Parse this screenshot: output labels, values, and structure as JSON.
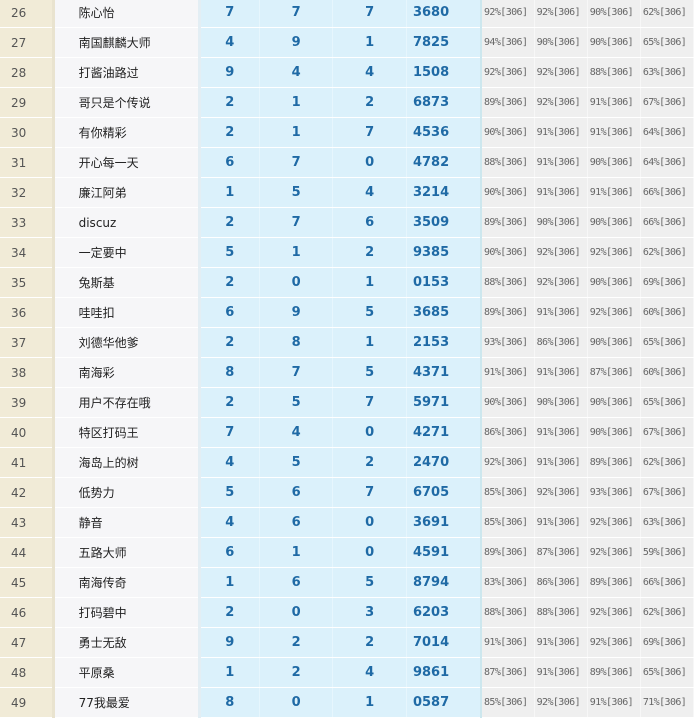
{
  "rows": [
    {
      "rank": "26",
      "name": "陈心怡",
      "d": [
        "7",
        "7",
        "7"
      ],
      "num": "3680",
      "pct": [
        "92%[306]",
        "92%[306]",
        "90%[306]",
        "62%[306]"
      ]
    },
    {
      "rank": "27",
      "name": "南国麒麟大师",
      "d": [
        "4",
        "9",
        "1"
      ],
      "num": "7825",
      "pct": [
        "94%[306]",
        "90%[306]",
        "90%[306]",
        "65%[306]"
      ]
    },
    {
      "rank": "28",
      "name": "打酱油路过",
      "d": [
        "9",
        "4",
        "4"
      ],
      "num": "1508",
      "pct": [
        "92%[306]",
        "92%[306]",
        "88%[306]",
        "63%[306]"
      ]
    },
    {
      "rank": "29",
      "name": "哥只是个传说",
      "d": [
        "2",
        "1",
        "2"
      ],
      "num": "6873",
      "pct": [
        "89%[306]",
        "92%[306]",
        "91%[306]",
        "67%[306]"
      ]
    },
    {
      "rank": "30",
      "name": "有你精彩",
      "d": [
        "2",
        "1",
        "7"
      ],
      "num": "4536",
      "pct": [
        "90%[306]",
        "91%[306]",
        "91%[306]",
        "64%[306]"
      ]
    },
    {
      "rank": "31",
      "name": "开心每一天",
      "d": [
        "6",
        "7",
        "0"
      ],
      "num": "4782",
      "pct": [
        "88%[306]",
        "91%[306]",
        "90%[306]",
        "64%[306]"
      ]
    },
    {
      "rank": "32",
      "name": "廉江阿弟",
      "d": [
        "1",
        "5",
        "4"
      ],
      "num": "3214",
      "pct": [
        "90%[306]",
        "91%[306]",
        "91%[306]",
        "66%[306]"
      ]
    },
    {
      "rank": "33",
      "name": "discuz",
      "d": [
        "2",
        "7",
        "6"
      ],
      "num": "3509",
      "pct": [
        "89%[306]",
        "90%[306]",
        "90%[306]",
        "66%[306]"
      ]
    },
    {
      "rank": "34",
      "name": "一定要中",
      "d": [
        "5",
        "1",
        "2"
      ],
      "num": "9385",
      "pct": [
        "90%[306]",
        "92%[306]",
        "92%[306]",
        "62%[306]"
      ]
    },
    {
      "rank": "35",
      "name": "兔斯基",
      "d": [
        "2",
        "0",
        "1"
      ],
      "num": "0153",
      "pct": [
        "88%[306]",
        "92%[306]",
        "90%[306]",
        "69%[306]"
      ]
    },
    {
      "rank": "36",
      "name": "哇哇扣",
      "d": [
        "6",
        "9",
        "5"
      ],
      "num": "3685",
      "pct": [
        "89%[306]",
        "91%[306]",
        "92%[306]",
        "60%[306]"
      ]
    },
    {
      "rank": "37",
      "name": "刘德华他爹",
      "d": [
        "2",
        "8",
        "1"
      ],
      "num": "2153",
      "pct": [
        "93%[306]",
        "86%[306]",
        "90%[306]",
        "65%[306]"
      ]
    },
    {
      "rank": "38",
      "name": "南海彩",
      "d": [
        "8",
        "7",
        "5"
      ],
      "num": "4371",
      "pct": [
        "91%[306]",
        "91%[306]",
        "87%[306]",
        "60%[306]"
      ]
    },
    {
      "rank": "39",
      "name": "用户不存在哦",
      "d": [
        "2",
        "5",
        "7"
      ],
      "num": "5971",
      "pct": [
        "90%[306]",
        "90%[306]",
        "90%[306]",
        "65%[306]"
      ]
    },
    {
      "rank": "40",
      "name": "特区打码王",
      "d": [
        "7",
        "4",
        "0"
      ],
      "num": "4271",
      "pct": [
        "86%[306]",
        "91%[306]",
        "90%[306]",
        "67%[306]"
      ]
    },
    {
      "rank": "41",
      "name": "海岛上的树",
      "d": [
        "4",
        "5",
        "2"
      ],
      "num": "2470",
      "pct": [
        "92%[306]",
        "91%[306]",
        "89%[306]",
        "62%[306]"
      ]
    },
    {
      "rank": "42",
      "name": "低势力",
      "d": [
        "5",
        "6",
        "7"
      ],
      "num": "6705",
      "pct": [
        "85%[306]",
        "92%[306]",
        "93%[306]",
        "67%[306]"
      ]
    },
    {
      "rank": "43",
      "name": "静音",
      "d": [
        "4",
        "6",
        "0"
      ],
      "num": "3691",
      "pct": [
        "85%[306]",
        "91%[306]",
        "92%[306]",
        "63%[306]"
      ]
    },
    {
      "rank": "44",
      "name": "五路大师",
      "d": [
        "6",
        "1",
        "0"
      ],
      "num": "4591",
      "pct": [
        "89%[306]",
        "87%[306]",
        "92%[306]",
        "59%[306]"
      ]
    },
    {
      "rank": "45",
      "name": "南海传奇",
      "d": [
        "1",
        "6",
        "5"
      ],
      "num": "8794",
      "pct": [
        "83%[306]",
        "86%[306]",
        "89%[306]",
        "66%[306]"
      ]
    },
    {
      "rank": "46",
      "name": "打码碧中",
      "d": [
        "2",
        "0",
        "3"
      ],
      "num": "6203",
      "pct": [
        "88%[306]",
        "88%[306]",
        "92%[306]",
        "62%[306]"
      ]
    },
    {
      "rank": "47",
      "name": "勇士无敌",
      "d": [
        "9",
        "2",
        "2"
      ],
      "num": "7014",
      "pct": [
        "91%[306]",
        "91%[306]",
        "92%[306]",
        "69%[306]"
      ]
    },
    {
      "rank": "48",
      "name": "平原桑",
      "d": [
        "1",
        "2",
        "4"
      ],
      "num": "9861",
      "pct": [
        "87%[306]",
        "91%[306]",
        "89%[306]",
        "65%[306]"
      ]
    },
    {
      "rank": "49",
      "name": "77我最爱",
      "d": [
        "8",
        "0",
        "1"
      ],
      "num": "0587",
      "pct": [
        "85%[306]",
        "92%[306]",
        "91%[306]",
        "71%[306]"
      ]
    }
  ]
}
